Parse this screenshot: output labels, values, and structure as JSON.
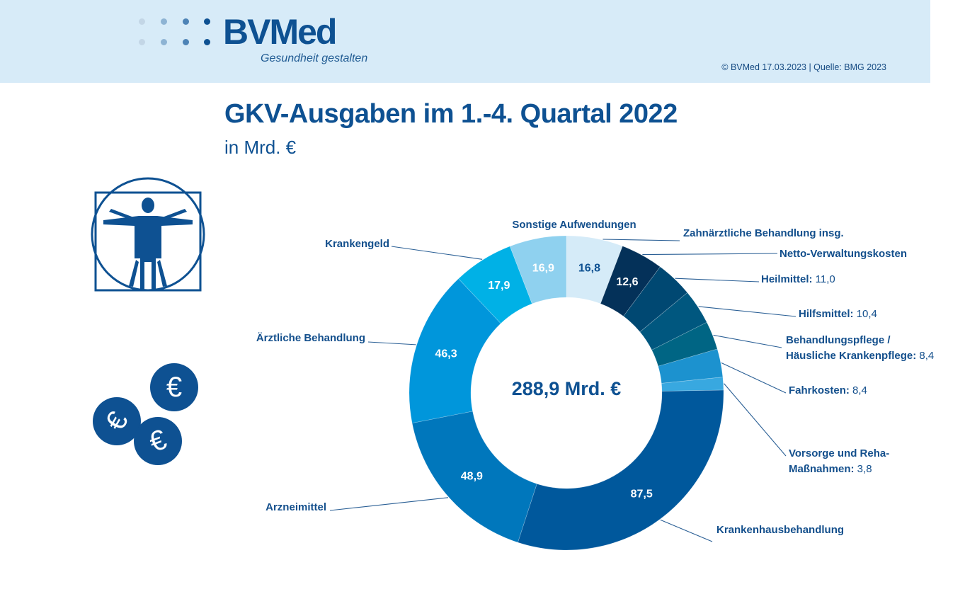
{
  "header": {
    "logo_text": "BVMed",
    "tagline": "Gesundheit gestalten",
    "copyright": "© BVMed 17.03.2023 | Quelle: BMG 2023"
  },
  "icons": [
    "vitruvian-man-icon",
    "euro-coins-icon"
  ],
  "chart_data": {
    "type": "pie",
    "variant": "donut",
    "title": "GKV-Ausgaben im 1.-4. Quartal 2022",
    "subtitle": "in Mrd. €",
    "center_label": "288,9 Mrd. €",
    "total": 288.9,
    "unit": "Mrd. €",
    "start": "12 o'clock, clockwise",
    "slices": [
      {
        "label": "Zahnärztliche Behandlung insg.",
        "value": 16.8,
        "value_text": "16,8",
        "color": "#d5ebf8",
        "value_in_slice": true,
        "label_color_dark": true
      },
      {
        "label": "Netto-Verwaltungskosten",
        "value": 12.6,
        "value_text": "12,6",
        "color": "#043159",
        "value_in_slice": true
      },
      {
        "label": "Heilmittel",
        "value": 11.0,
        "value_text": "11,0",
        "color": "#004872",
        "value_in_slice": false
      },
      {
        "label": "Hilfsmittel",
        "value": 10.4,
        "value_text": "10,4",
        "color": "#00577f",
        "value_in_slice": false
      },
      {
        "label": "Behandlungspflege / Häusliche Krankenpflege",
        "value": 8.4,
        "value_text": "8,4",
        "color": "#006584",
        "value_in_slice": false
      },
      {
        "label": "Fahrkosten",
        "value": 8.4,
        "value_text": "8,4",
        "color": "#1c92cf",
        "value_in_slice": false
      },
      {
        "label": "Vorsorge und Reha-Maßnahmen",
        "value": 3.8,
        "value_text": "3,8",
        "color": "#38a8e0",
        "value_in_slice": false
      },
      {
        "label": "Krankenhausbehandlung",
        "value": 87.5,
        "value_text": "87,5",
        "color": "#00589c",
        "value_in_slice": true
      },
      {
        "label": "Arzneimittel",
        "value": 48.9,
        "value_text": "48,9",
        "color": "#0077bc",
        "value_in_slice": true
      },
      {
        "label": "Ärztliche Behandlung",
        "value": 46.3,
        "value_text": "46,3",
        "color": "#0096db",
        "value_in_slice": true
      },
      {
        "label": "Krankengeld",
        "value": 17.9,
        "value_text": "17,9",
        "color": "#00b1e6",
        "value_in_slice": true
      },
      {
        "label": "Sonstige Aufwendungen",
        "value": 16.9,
        "value_text": "16,9",
        "color": "#8fd1ef",
        "value_in_slice": true
      }
    ],
    "outside_labels": [
      {
        "lines": [
          "Zahnärztliche Behandlung insg."
        ],
        "value": ""
      },
      {
        "lines": [
          "Netto-Verwaltungskosten"
        ],
        "value": ""
      },
      {
        "lines": [
          "Heilmittel:"
        ],
        "value": "11,0"
      },
      {
        "lines": [
          "Hilfsmittel:"
        ],
        "value": "10,4"
      },
      {
        "lines": [
          "Behandlungspflege /",
          "Häusliche Krankenpflege:"
        ],
        "value": "8,4"
      },
      {
        "lines": [
          "Fahrkosten:"
        ],
        "value": "8,4"
      },
      {
        "lines": [
          "Vorsorge und Reha-",
          "Maßnahmen:"
        ],
        "value": "3,8"
      },
      {
        "lines": [
          "Krankenhausbehandlung"
        ],
        "value": ""
      },
      {
        "lines": [
          "Arzneimittel"
        ],
        "value": ""
      },
      {
        "lines": [
          "Ärztliche Behandlung"
        ],
        "value": ""
      },
      {
        "lines": [
          "Krankengeld"
        ],
        "value": ""
      },
      {
        "lines": [
          "Sonstige Aufwendungen"
        ],
        "value": ""
      }
    ]
  }
}
